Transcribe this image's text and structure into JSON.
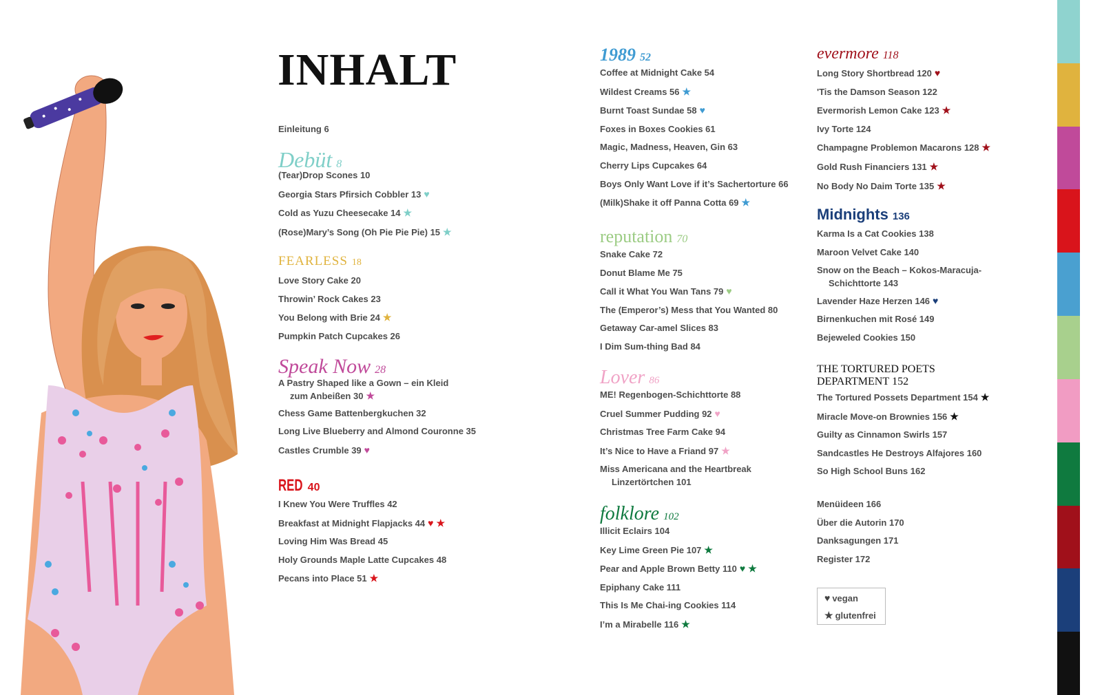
{
  "title": "INHALT",
  "tab_colors": [
    "#8fd3cf",
    "#e0b33e",
    "#c04a9a",
    "#d9141b",
    "#4aa0d0",
    "#a8d08d",
    "#f19cc3",
    "#0f7a3f",
    "#a0101a",
    "#1b3f7a",
    "#111111"
  ],
  "intro": {
    "items": [
      {
        "lines": [
          "Einleitung 6"
        ],
        "marks": []
      }
    ]
  },
  "sections": [
    {
      "id": "debut",
      "title": "Debüt",
      "page": "8",
      "color": "#7fcfc8",
      "items": [
        {
          "lines": [
            "(Tear)Drop Scones 10"
          ],
          "marks": []
        },
        {
          "lines": [
            "Georgia Stars Pfirsich Cobbler 13"
          ],
          "marks": [
            "heart"
          ]
        },
        {
          "lines": [
            "Cold as Yuzu Cheesecake 14"
          ],
          "marks": [
            "star"
          ]
        },
        {
          "lines": [
            "(Rose)Mary’s Song (Oh Pie Pie Pie) 15"
          ],
          "marks": [
            "star"
          ]
        }
      ]
    },
    {
      "id": "fearless",
      "title": "FEARLESS",
      "page": "18",
      "color": "#e0b33e",
      "items": [
        {
          "lines": [
            "Love Story Cake 20"
          ],
          "marks": []
        },
        {
          "lines": [
            "Throwin’ Rock Cakes 23"
          ],
          "marks": []
        },
        {
          "lines": [
            "You Belong with Brie 24"
          ],
          "marks": [
            "star"
          ]
        },
        {
          "lines": [
            "Pumpkin Patch Cupcakes 26"
          ],
          "marks": []
        }
      ]
    },
    {
      "id": "speaknow",
      "title": "Speak Now",
      "page": "28",
      "color": "#c04a9a",
      "items": [
        {
          "lines": [
            "A Pastry Shaped like a Gown – ein Kleid",
            "zum Anbeißen 30"
          ],
          "marks": [
            "star"
          ]
        },
        {
          "lines": [
            "Chess Game Battenbergkuchen 32"
          ],
          "marks": []
        },
        {
          "lines": [
            "Long Live Blueberry and Almond Couronne 35"
          ],
          "marks": []
        },
        {
          "lines": [
            "Castles Crumble 39"
          ],
          "marks": [
            "heart"
          ]
        }
      ]
    },
    {
      "id": "red",
      "title": "RED",
      "page": "40",
      "color": "#d9141b",
      "items": [
        {
          "lines": [
            "I Knew You Were Truffles 42"
          ],
          "marks": []
        },
        {
          "lines": [
            "Breakfast at Midnight Flapjacks 44"
          ],
          "marks": [
            "heart",
            "star"
          ]
        },
        {
          "lines": [
            "Loving Him Was Bread 45"
          ],
          "marks": []
        },
        {
          "lines": [
            "Holy Grounds Maple Latte Cupcakes 48"
          ],
          "marks": []
        },
        {
          "lines": [
            "Pecans into Place 51"
          ],
          "marks": [
            "star"
          ]
        }
      ]
    },
    {
      "id": "s1989",
      "title": "1989",
      "page": "52",
      "color": "#3f9bd2",
      "items": [
        {
          "lines": [
            "Coffee at Midnight Cake 54"
          ],
          "marks": []
        },
        {
          "lines": [
            "Wildest Creams 56"
          ],
          "marks": [
            "star"
          ]
        },
        {
          "lines": [
            "Burnt Toast Sundae 58"
          ],
          "marks": [
            "heart"
          ]
        },
        {
          "lines": [
            "Foxes in Boxes Cookies 61"
          ],
          "marks": []
        },
        {
          "lines": [
            "Magic, Madness, Heaven, Gin 63"
          ],
          "marks": []
        },
        {
          "lines": [
            "Cherry Lips Cupcakes 64"
          ],
          "marks": []
        },
        {
          "lines": [
            "Boys Only Want Love if it’s Sachertorture 66"
          ],
          "marks": []
        },
        {
          "lines": [
            "(Milk)Shake it off Panna Cotta 69"
          ],
          "marks": [
            "star"
          ]
        }
      ]
    },
    {
      "id": "reputation",
      "title": "reputation",
      "page": "70",
      "color": "#9ccc84",
      "items": [
        {
          "lines": [
            "Snake Cake 72"
          ],
          "marks": []
        },
        {
          "lines": [
            "Donut Blame Me 75"
          ],
          "marks": []
        },
        {
          "lines": [
            "Call it What You Wan Tans 79"
          ],
          "marks": [
            "heart"
          ]
        },
        {
          "lines": [
            "The (Emperor’s) Mess that You Wanted 80"
          ],
          "marks": []
        },
        {
          "lines": [
            "Getaway Car-amel Slices 83"
          ],
          "marks": []
        },
        {
          "lines": [
            "I Dim Sum-thing Bad 84"
          ],
          "marks": []
        }
      ]
    },
    {
      "id": "lover",
      "title": "Lover",
      "page": "86",
      "color": "#f0a3c6",
      "items": [
        {
          "lines": [
            "ME! Regenbogen-Schichttorte 88"
          ],
          "marks": []
        },
        {
          "lines": [
            "Cruel Summer Pudding 92"
          ],
          "marks": [
            "heart"
          ]
        },
        {
          "lines": [
            "Christmas Tree Farm Cake 94"
          ],
          "marks": []
        },
        {
          "lines": [
            "It’s Nice to Have a Friand 97"
          ],
          "marks": [
            "star"
          ]
        },
        {
          "lines": [
            "Miss Americana and the Heartbreak",
            "Linzertörtchen 101"
          ],
          "marks": []
        }
      ]
    },
    {
      "id": "folklore",
      "title": "folklore",
      "page": "102",
      "color": "#0f7a3f",
      "items": [
        {
          "lines": [
            "Illicit Eclairs 104"
          ],
          "marks": []
        },
        {
          "lines": [
            "Key Lime Green Pie 107"
          ],
          "marks": [
            "star"
          ]
        },
        {
          "lines": [
            "Pear and Apple Brown Betty 110"
          ],
          "marks": [
            "heart",
            "star"
          ]
        },
        {
          "lines": [
            "Epiphany Cake 111"
          ],
          "marks": []
        },
        {
          "lines": [
            "This Is Me Chai-ing Cookies 114"
          ],
          "marks": []
        },
        {
          "lines": [
            "I’m a Mirabelle 116"
          ],
          "marks": [
            "star"
          ]
        }
      ]
    },
    {
      "id": "evermore",
      "title": "evermore",
      "page": "118",
      "color": "#a0101a",
      "items": [
        {
          "lines": [
            "Long Story Shortbread 120"
          ],
          "marks": [
            "heart"
          ]
        },
        {
          "lines": [
            "'Tis the Damson Season 122"
          ],
          "marks": []
        },
        {
          "lines": [
            "Evermorish Lemon Cake 123"
          ],
          "marks": [
            "star"
          ]
        },
        {
          "lines": [
            "Ivy Torte 124"
          ],
          "marks": []
        },
        {
          "lines": [
            "Champagne Problemon Macarons 128"
          ],
          "marks": [
            "star"
          ]
        },
        {
          "lines": [
            "Gold Rush Financiers 131"
          ],
          "marks": [
            "star"
          ]
        },
        {
          "lines": [
            "No Body No Daim Torte 135"
          ],
          "marks": [
            "star"
          ]
        }
      ]
    },
    {
      "id": "midnights",
      "title": "Midnights",
      "page": "136",
      "color": "#1b3f7a",
      "items": [
        {
          "lines": [
            "Karma Is a Cat Cookies 138"
          ],
          "marks": []
        },
        {
          "lines": [
            "Maroon Velvet Cake 140"
          ],
          "marks": []
        },
        {
          "lines": [
            "Snow on the Beach – Kokos-Maracuja-",
            "Schichttorte 143"
          ],
          "marks": []
        },
        {
          "lines": [
            "Lavender Haze Herzen 146"
          ],
          "marks": [
            "heart"
          ]
        },
        {
          "lines": [
            "Birnenkuchen mit Rosé 149"
          ],
          "marks": []
        },
        {
          "lines": [
            "Bejeweled Cookies 150"
          ],
          "marks": []
        }
      ]
    },
    {
      "id": "ttpd",
      "title": "THE TORTURED POETS DEPARTMENT",
      "page": "152",
      "color": "#111111",
      "items": [
        {
          "lines": [
            "The Tortured Possets Department 154"
          ],
          "marks": [
            "star"
          ]
        },
        {
          "lines": [
            "Miracle Move-on Brownies 156"
          ],
          "marks": [
            "star"
          ]
        },
        {
          "lines": [
            "Guilty as Cinnamon Swirls 157"
          ],
          "marks": []
        },
        {
          "lines": [
            "Sandcastles He Destroys Alfajores 160"
          ],
          "marks": []
        },
        {
          "lines": [
            "So High School Buns 162"
          ],
          "marks": []
        }
      ]
    }
  ],
  "backmatter": {
    "items": [
      {
        "lines": [
          "Menüideen 166"
        ],
        "marks": []
      },
      {
        "lines": [
          "Über die Autorin 170"
        ],
        "marks": []
      },
      {
        "lines": [
          "Danksagungen 171"
        ],
        "marks": []
      },
      {
        "lines": [
          "Register 172"
        ],
        "marks": []
      }
    ]
  },
  "legend": [
    {
      "icon": "heart",
      "label": "vegan"
    },
    {
      "icon": "star",
      "label": "glutenfrei"
    }
  ]
}
